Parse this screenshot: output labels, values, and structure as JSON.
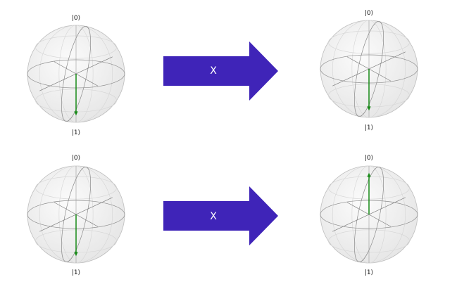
{
  "rows": [
    {
      "input": {
        "top_label": "|0⟩",
        "bottom_label": "|1⟩",
        "state_vector": "down"
      },
      "gate": {
        "label": "X"
      },
      "output": {
        "top_label": "|0⟩",
        "bottom_label": "|1⟩",
        "state_vector": "down"
      }
    },
    {
      "input": {
        "top_label": "|0⟩",
        "bottom_label": "|1⟩",
        "state_vector": "down"
      },
      "gate": {
        "label": "X"
      },
      "output": {
        "top_label": "|0⟩",
        "bottom_label": "|1⟩",
        "state_vector": "up"
      }
    }
  ],
  "colors": {
    "arrow_fill": "#3f24b8",
    "vector": "#178a17",
    "sphere_fill": "#f0f0f0",
    "sphere_edge": "#bdbdbd",
    "grid": "#8c8c8c"
  }
}
